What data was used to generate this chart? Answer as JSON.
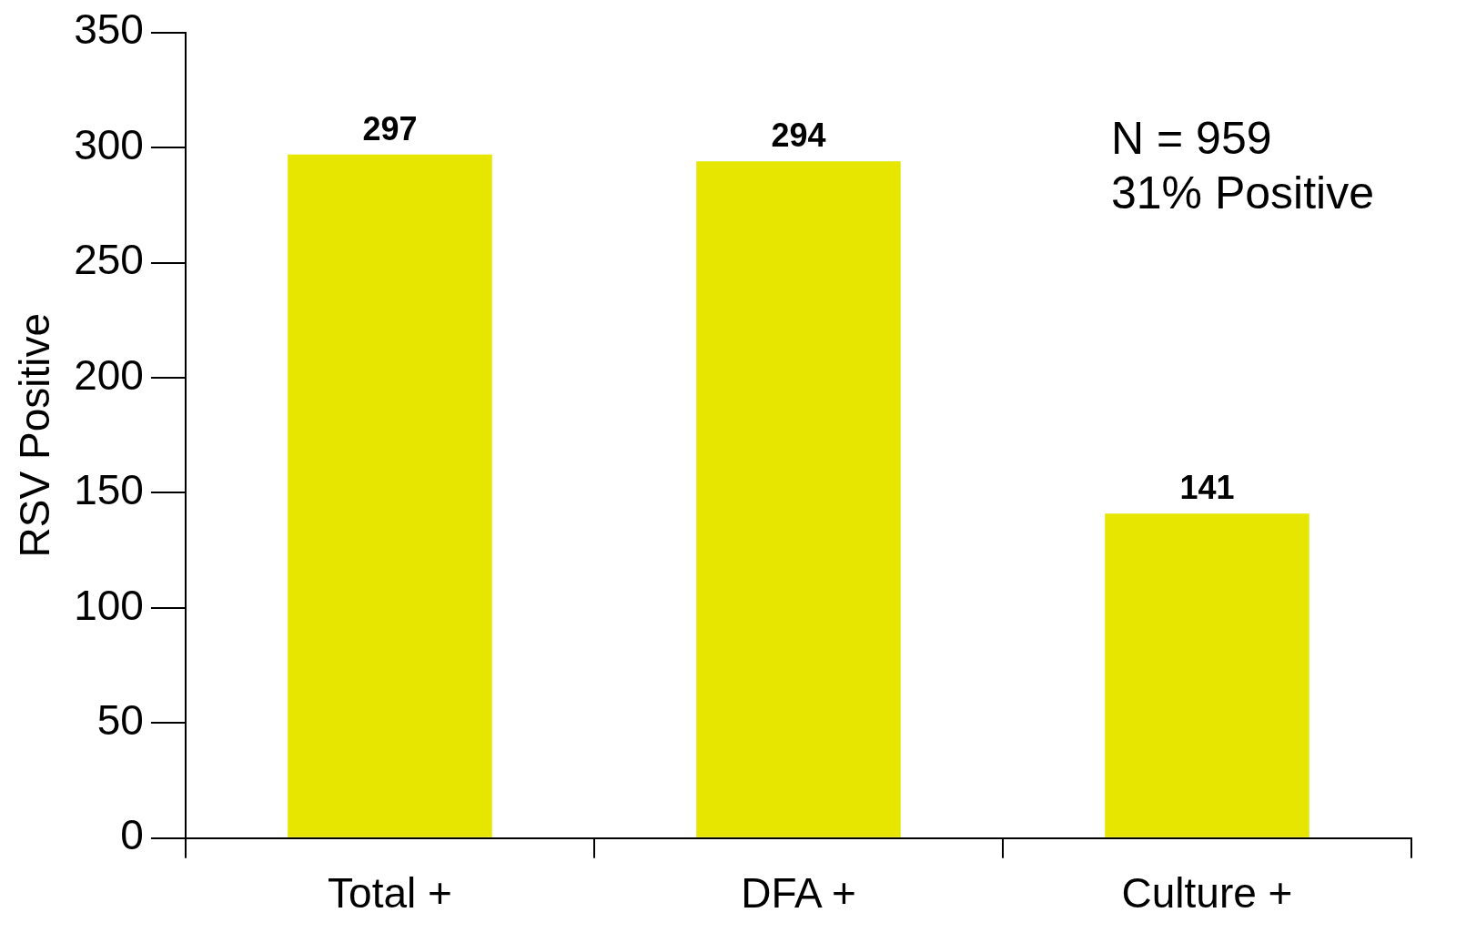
{
  "chart_data": {
    "type": "bar",
    "ylabel": "RSV Positive",
    "categories": [
      "Total +",
      "DFA +",
      "Culture +"
    ],
    "values": [
      297,
      294,
      141
    ],
    "color": "#e6e600",
    "ylim": [
      0,
      350
    ],
    "yticks": [
      0,
      50,
      100,
      150,
      200,
      250,
      300,
      350
    ],
    "grid": false,
    "data_labels": true,
    "annotations": [
      "N = 959",
      "31% Positive"
    ]
  }
}
